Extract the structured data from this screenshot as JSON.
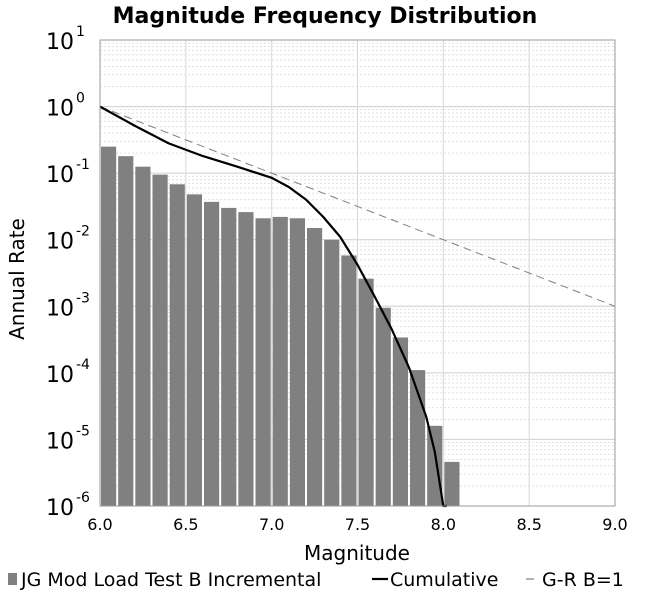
{
  "chart_data": {
    "type": "bar",
    "title": "Magnitude Frequency Distribution",
    "xlabel": "Magnitude",
    "ylabel": "Annual Rate",
    "xlim": [
      6.0,
      9.0
    ],
    "ylim": [
      1e-06,
      10
    ],
    "y_scale": "log",
    "grid": true,
    "legend_position": "bottom",
    "x_ticks": [
      "6.0",
      "6.5",
      "7.0",
      "7.5",
      "8.0",
      "8.5",
      "9.0"
    ],
    "x_tick_values": [
      6.0,
      6.5,
      7.0,
      7.5,
      8.0,
      8.5,
      9.0
    ],
    "y_tick_exponents": [
      "1",
      "0",
      "-1",
      "-2",
      "-3",
      "-4",
      "-5",
      "-6"
    ],
    "y_tick_base": "10",
    "series": [
      {
        "name": "JG Mod Load Test B Incremental",
        "kind": "bar",
        "color": "#808080",
        "x": [
          6.0,
          6.1,
          6.2,
          6.3,
          6.4,
          6.5,
          6.6,
          6.7,
          6.8,
          6.9,
          7.0,
          7.1,
          7.2,
          7.3,
          7.4,
          7.5,
          7.6,
          7.7,
          7.8,
          7.9,
          8.0
        ],
        "values": [
          0.25,
          0.18,
          0.125,
          0.095,
          0.068,
          0.048,
          0.037,
          0.03,
          0.026,
          0.021,
          0.022,
          0.021,
          0.015,
          0.01,
          0.0058,
          0.0026,
          0.00095,
          0.00034,
          0.00011,
          1.6e-05,
          4.6e-06
        ]
      },
      {
        "name": "Cumulative",
        "kind": "line",
        "color": "#000000",
        "x": [
          6.0,
          6.2,
          6.4,
          6.6,
          6.8,
          7.0,
          7.1,
          7.2,
          7.3,
          7.4,
          7.5,
          7.6,
          7.7,
          7.8,
          7.9,
          7.95,
          8.0,
          8.02
        ],
        "values": [
          1.0,
          0.52,
          0.28,
          0.18,
          0.125,
          0.085,
          0.062,
          0.04,
          0.022,
          0.011,
          0.0042,
          0.0014,
          0.00045,
          0.00012,
          2.2e-05,
          6.5e-06,
          8e-07,
          1e-06
        ]
      },
      {
        "name": "G-R B=1",
        "kind": "dashed-line",
        "color": "#808080",
        "x": [
          6.0,
          9.0
        ],
        "values": [
          1.0,
          0.001
        ]
      }
    ]
  },
  "legend": [
    {
      "label": "JG Mod Load Test B Incremental",
      "symbol": "square",
      "color": "#808080"
    },
    {
      "label": "Cumulative",
      "symbol": "line",
      "color": "#000000"
    },
    {
      "label": "G-R B=1",
      "symbol": "dash",
      "color": "#808080"
    }
  ]
}
